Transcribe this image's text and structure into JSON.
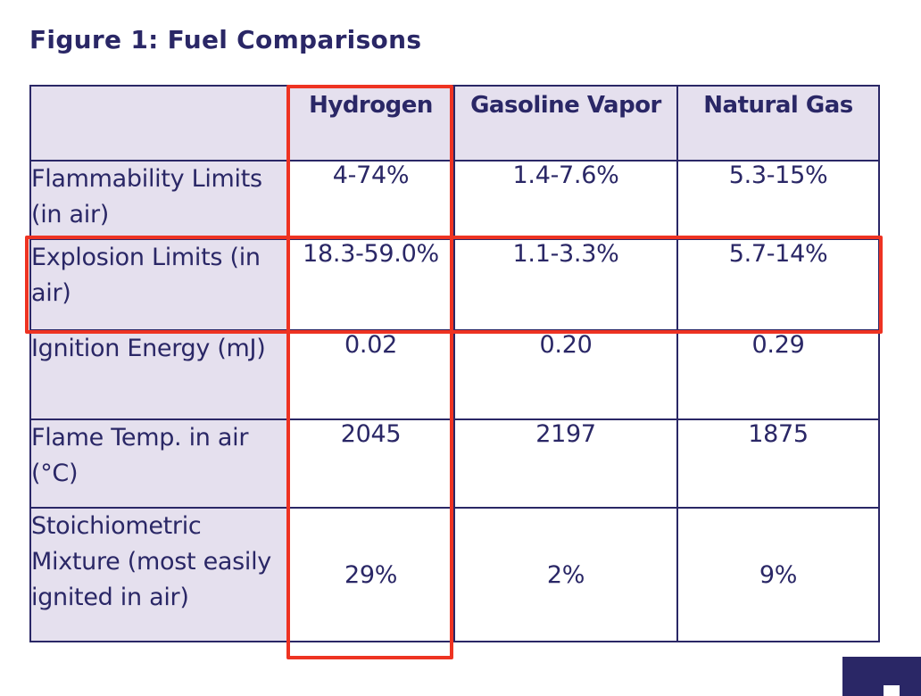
{
  "figure": {
    "title": "Figure 1: Fuel Comparisons"
  },
  "table": {
    "columns": [
      "",
      "Hydrogen",
      "Gasoline Vapor",
      "Natural Gas"
    ],
    "rows": [
      {
        "label": "Flammability Limits (in air)",
        "hydrogen": "4-74%",
        "gasoline": "1.4-7.6%",
        "natural_gas": "5.3-15%"
      },
      {
        "label": "Explosion Limits (in air)",
        "hydrogen": "18.3-59.0%",
        "gasoline": "1.1-3.3%",
        "natural_gas": "5.7-14%"
      },
      {
        "label": "Ignition Energy (mJ)",
        "hydrogen": "0.02",
        "gasoline": "0.20",
        "natural_gas": "0.29"
      },
      {
        "label": "Flame Temp. in air (°C)",
        "hydrogen": "2045",
        "gasoline": "2197",
        "natural_gas": "1875"
      },
      {
        "label": "Stoichiometric Mixture (most easily ignited in air)",
        "hydrogen": "29%",
        "gasoline": "2%",
        "natural_gas": "9%"
      }
    ]
  },
  "highlights": {
    "color": "#ee3322",
    "column": "Hydrogen",
    "row": "Explosion Limits (in air)"
  },
  "colors": {
    "text": "#2a2766",
    "header_bg": "#e5e0ee",
    "border": "#2a2766"
  }
}
